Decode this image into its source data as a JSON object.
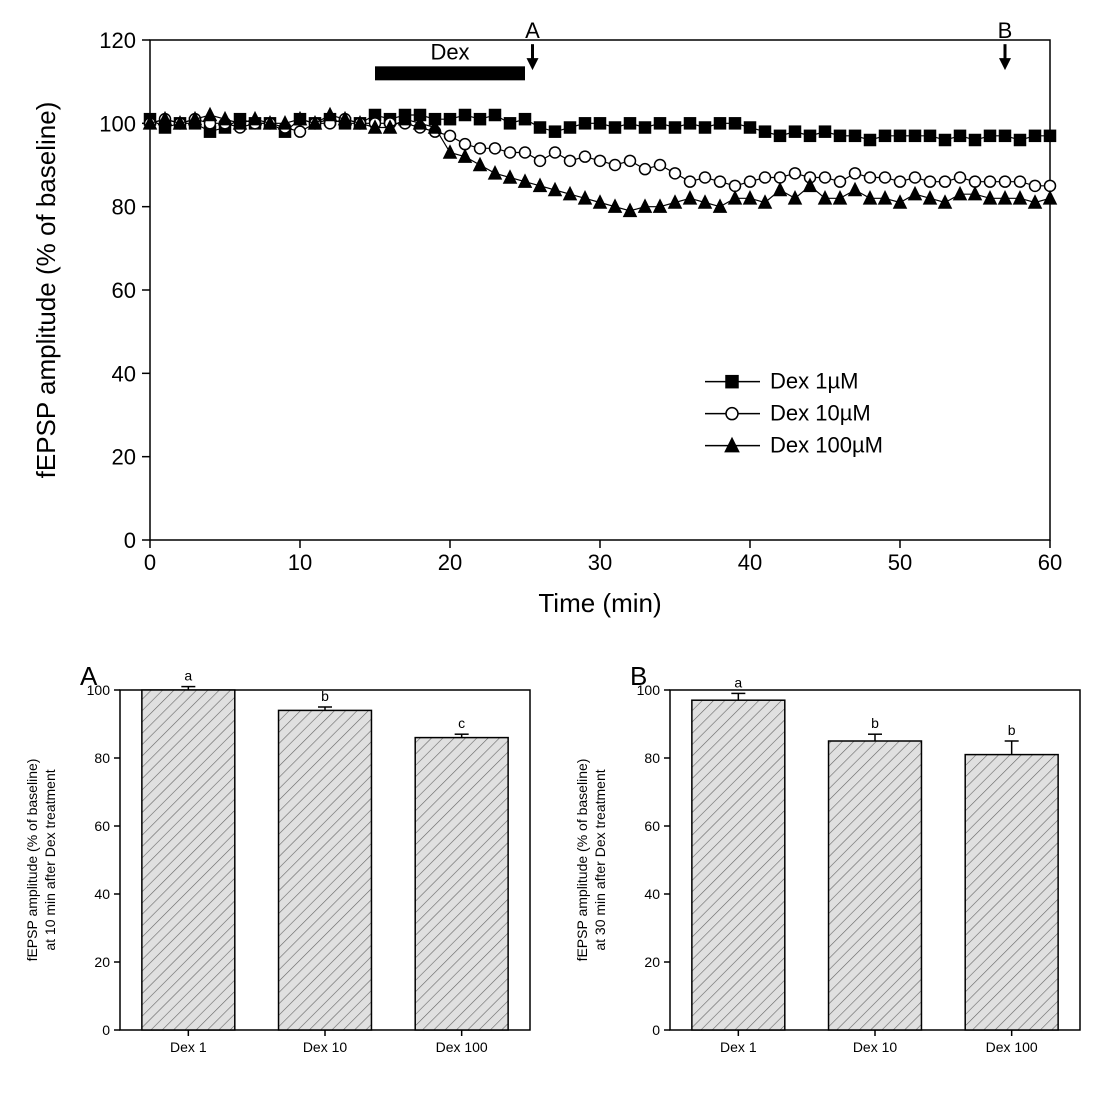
{
  "main_chart": {
    "type": "scatter-line",
    "x_label": "Time (min)",
    "y_label": "fEPSP amplitude (% of baseline)",
    "xlim": [
      0,
      60
    ],
    "xtick_step": 10,
    "ylim": [
      0,
      120
    ],
    "ytick_step": 20,
    "label_fontsize": 26,
    "tick_fontsize": 22,
    "background": "#ffffff",
    "axis_color": "#000000",
    "series": [
      {
        "name": "Dex 1µM",
        "marker": "square-filled",
        "color": "#000000",
        "fill": "#000000",
        "x": [
          0,
          1,
          2,
          3,
          4,
          5,
          6,
          7,
          8,
          9,
          10,
          11,
          12,
          13,
          14,
          15,
          16,
          17,
          18,
          19,
          20,
          21,
          22,
          23,
          24,
          25,
          26,
          27,
          28,
          29,
          30,
          31,
          32,
          33,
          34,
          35,
          36,
          37,
          38,
          39,
          40,
          41,
          42,
          43,
          44,
          45,
          46,
          47,
          48,
          49,
          50,
          51,
          52,
          53,
          54,
          55,
          56,
          57,
          58,
          59,
          60
        ],
        "y": [
          101,
          99,
          100,
          100,
          98,
          99,
          101,
          100,
          100,
          98,
          101,
          100,
          101,
          100,
          100,
          102,
          101,
          102,
          102,
          101,
          101,
          102,
          101,
          102,
          100,
          101,
          99,
          98,
          99,
          100,
          100,
          99,
          100,
          99,
          100,
          99,
          100,
          99,
          100,
          100,
          99,
          98,
          97,
          98,
          97,
          98,
          97,
          97,
          96,
          97,
          97,
          97,
          97,
          96,
          97,
          96,
          97,
          97,
          96,
          97,
          97
        ]
      },
      {
        "name": "Dex 10µM",
        "marker": "circle-open",
        "color": "#000000",
        "fill": "#ffffff",
        "x": [
          0,
          1,
          2,
          3,
          4,
          5,
          6,
          7,
          8,
          9,
          10,
          11,
          12,
          13,
          14,
          15,
          16,
          17,
          18,
          19,
          20,
          21,
          22,
          23,
          24,
          25,
          26,
          27,
          28,
          29,
          30,
          31,
          32,
          33,
          34,
          35,
          36,
          37,
          38,
          39,
          40,
          41,
          42,
          43,
          44,
          45,
          46,
          47,
          48,
          49,
          50,
          51,
          52,
          53,
          54,
          55,
          56,
          57,
          58,
          59,
          60
        ],
        "y": [
          100,
          101,
          100,
          101,
          100,
          100,
          99,
          100,
          100,
          99,
          98,
          100,
          100,
          101,
          100,
          100,
          100,
          100,
          99,
          98,
          97,
          95,
          94,
          94,
          93,
          93,
          91,
          93,
          91,
          92,
          91,
          90,
          91,
          89,
          90,
          88,
          86,
          87,
          86,
          85,
          86,
          87,
          87,
          88,
          87,
          87,
          86,
          88,
          87,
          87,
          86,
          87,
          86,
          86,
          87,
          86,
          86,
          86,
          86,
          85,
          85
        ]
      },
      {
        "name": "Dex 100µM",
        "marker": "triangle-filled",
        "color": "#000000",
        "fill": "#000000",
        "x": [
          0,
          1,
          2,
          3,
          4,
          5,
          6,
          7,
          8,
          9,
          10,
          11,
          12,
          13,
          14,
          15,
          16,
          17,
          18,
          19,
          20,
          21,
          22,
          23,
          24,
          25,
          26,
          27,
          28,
          29,
          30,
          31,
          32,
          33,
          34,
          35,
          36,
          37,
          38,
          39,
          40,
          41,
          42,
          43,
          44,
          45,
          46,
          47,
          48,
          49,
          50,
          51,
          52,
          53,
          54,
          55,
          56,
          57,
          58,
          59,
          60
        ],
        "y": [
          100,
          101,
          100,
          101,
          102,
          101,
          100,
          101,
          100,
          100,
          101,
          100,
          102,
          101,
          100,
          99,
          99,
          101,
          100,
          99,
          93,
          92,
          90,
          88,
          87,
          86,
          85,
          84,
          83,
          82,
          81,
          80,
          79,
          80,
          80,
          81,
          82,
          81,
          80,
          82,
          82,
          81,
          84,
          82,
          85,
          82,
          82,
          84,
          82,
          82,
          81,
          83,
          82,
          81,
          83,
          83,
          82,
          82,
          82,
          81,
          82
        ]
      }
    ],
    "dex_bar": {
      "label": "Dex",
      "x_start": 15,
      "x_end": 25,
      "label_fontsize": 22
    },
    "arrow_A": {
      "label": "A",
      "x": 25.5
    },
    "arrow_B": {
      "label": "B",
      "x": 57
    },
    "legend": {
      "items": [
        "Dex 1µM",
        "Dex 10µM",
        "Dex 100µM"
      ],
      "fontsize": 22
    }
  },
  "chart_A": {
    "type": "bar",
    "panel_label": "A",
    "y_label_line1": "fEPSP amplitude (% of baseline)",
    "y_label_line2": "at 10 min after Dex treatment",
    "categories": [
      "Dex 1",
      "Dex 10",
      "Dex 100"
    ],
    "values": [
      100,
      94,
      86
    ],
    "errors": [
      1.0,
      1.0,
      1.0
    ],
    "sig_labels": [
      "a",
      "b",
      "c"
    ],
    "ylim": [
      0,
      100
    ],
    "ytick_step": 20,
    "bar_fill": "#e0e0e0",
    "bar_stroke": "#000000",
    "hatch": "diagonal",
    "label_fontsize": 14,
    "tick_fontsize": 14,
    "panel_fontsize": 26
  },
  "chart_B": {
    "type": "bar",
    "panel_label": "B",
    "y_label_line1": "fEPSP amplitude (% of baseline)",
    "y_label_line2": "at 30 min after Dex treatment",
    "categories": [
      "Dex 1",
      "Dex 10",
      "Dex 100"
    ],
    "values": [
      97,
      85,
      81
    ],
    "errors": [
      2.0,
      2.0,
      4.0
    ],
    "sig_labels": [
      "a",
      "b",
      "b"
    ],
    "ylim": [
      0,
      100
    ],
    "ytick_step": 20,
    "bar_fill": "#e0e0e0",
    "bar_stroke": "#000000",
    "hatch": "diagonal",
    "label_fontsize": 14,
    "tick_fontsize": 14,
    "panel_fontsize": 26
  }
}
